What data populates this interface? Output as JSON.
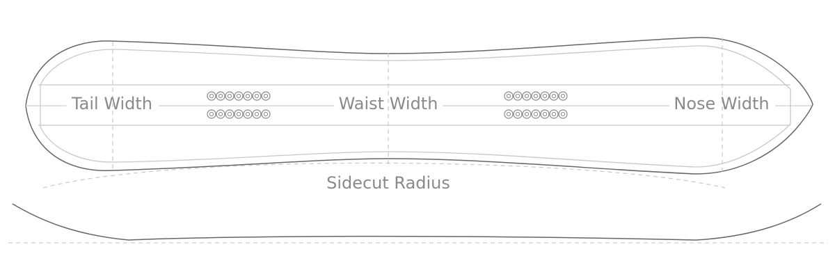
{
  "labels": {
    "tail_width": "Tail Width",
    "waist_width": "Waist Width",
    "nose_width": "Nose Width",
    "sidecut_radius": "Sidecut Radius"
  },
  "insert_groups": [
    {
      "rows": 2,
      "per_row": 7
    },
    {
      "rows": 2,
      "per_row": 7
    }
  ],
  "colors": {
    "outline": "#666666",
    "inner_line": "#c8c8c8",
    "dimension_line": "#cfcfcf",
    "label": "#8a8a8a"
  }
}
